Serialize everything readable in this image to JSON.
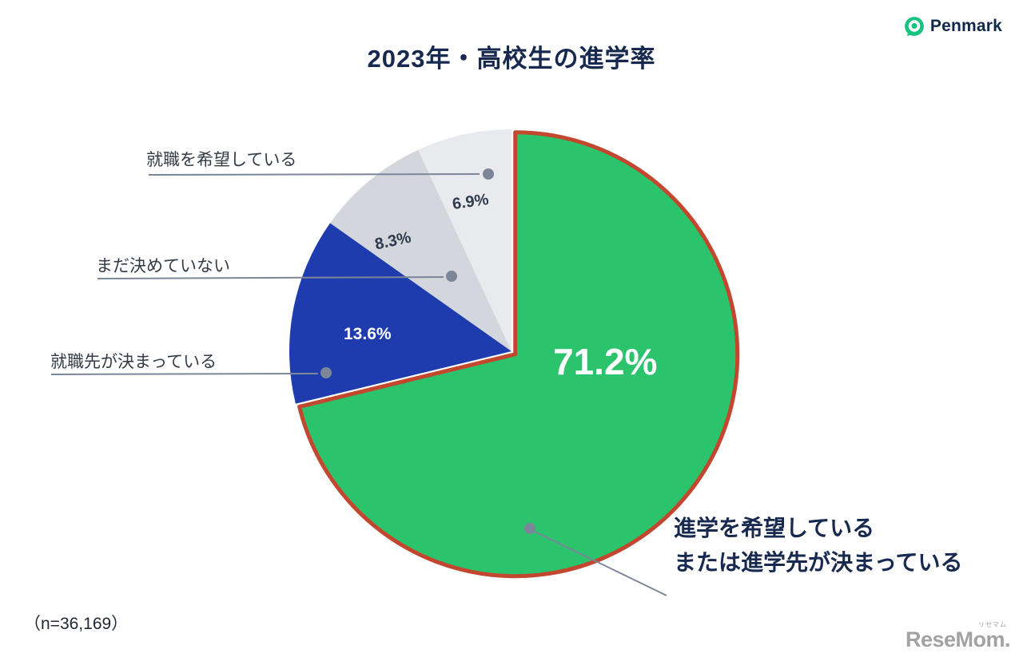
{
  "title": "2023年・高校生の進学率",
  "sample_size": "（n=36,169）",
  "branding": {
    "penmark": "Penmark",
    "penmark_green": "#17C381",
    "resemom": "ReseMom.",
    "resemom_small": "リセマム"
  },
  "colors": {
    "title_navy": "#17294E",
    "leader_gray": "#7D8698",
    "highlight_stroke": "#C3462E"
  },
  "callouts": {
    "jobs_hope": "就職を希望している",
    "undecided": "まだ決めていない",
    "job_decided": "就職先が決まっている",
    "advance_line1": "進学を希望している",
    "advance_line2": "または進学先が決まっている"
  },
  "chart_data": {
    "type": "pie",
    "title": "2023年・高校生の進学率",
    "sample_size": "n=36,169",
    "start_angle_deg": 0,
    "direction": "clockwise",
    "legend_position": "callout-labels",
    "slices": [
      {
        "label": "進学を希望している または進学先が決まっている",
        "value": 71.2,
        "display": "71.2%",
        "color": "#2CC36D",
        "highlight_stroke": "#C3462E"
      },
      {
        "label": "就職先が決まっている",
        "value": 13.6,
        "display": "13.6%",
        "color": "#1E3CAE"
      },
      {
        "label": "まだ決めていない",
        "value": 8.3,
        "display": "8.3%",
        "color": "#D3D6DC"
      },
      {
        "label": "就職を希望している",
        "value": 6.9,
        "display": "6.9%",
        "color": "#E8EAEE"
      }
    ]
  }
}
